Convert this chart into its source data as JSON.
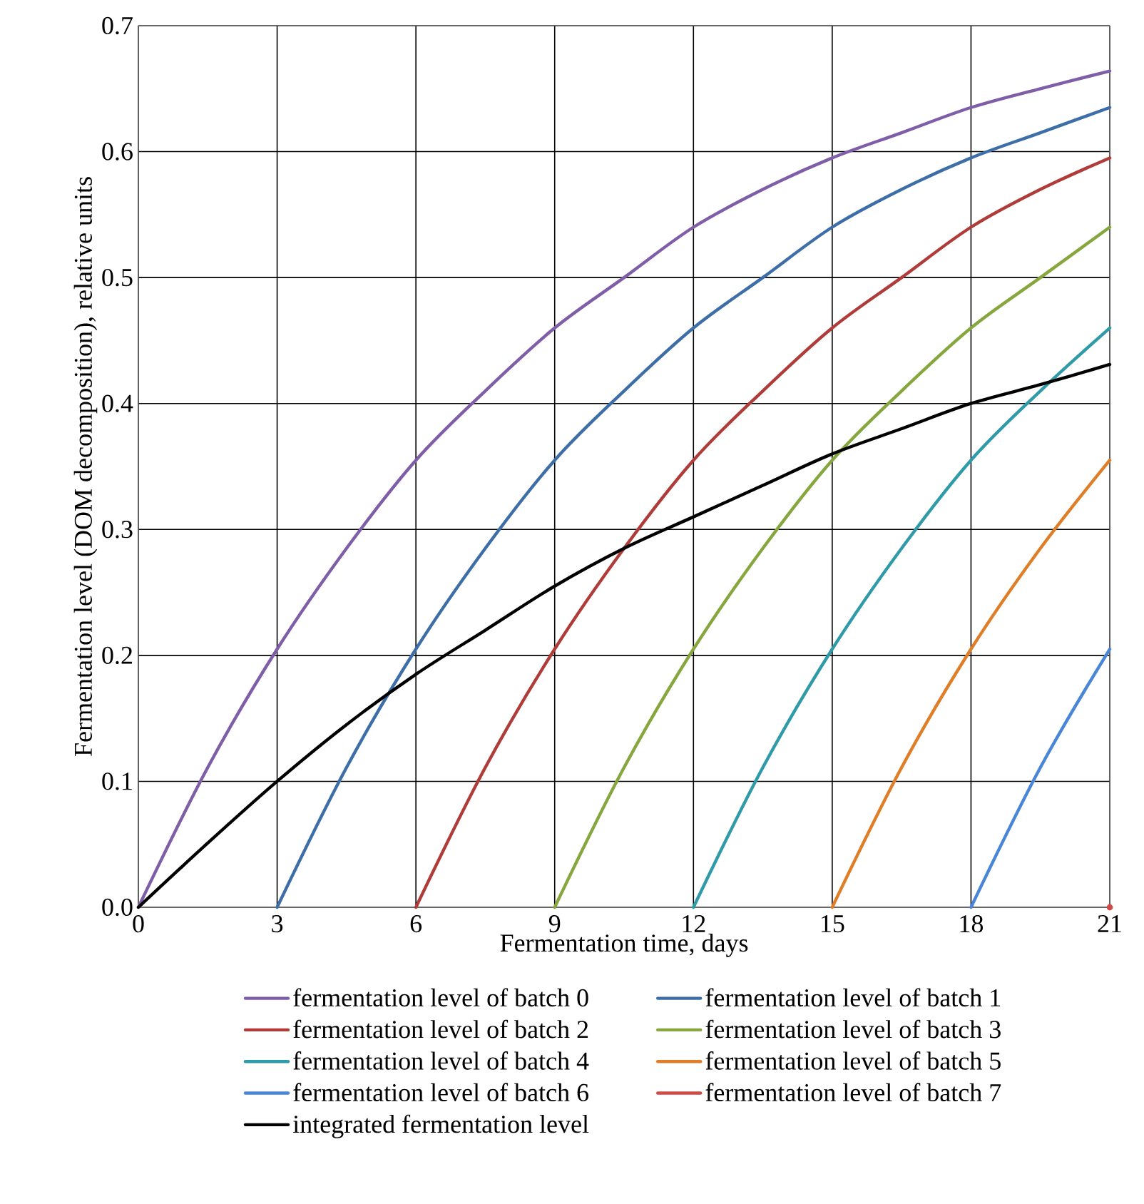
{
  "chart_data": {
    "type": "line",
    "xlabel": "Fermentation time, days",
    "ylabel": "Fermentation level (DOM decomposition), relative units",
    "xlim": [
      0,
      21
    ],
    "ylim": [
      0,
      0.7
    ],
    "xticks": [
      0,
      3,
      6,
      9,
      12,
      15,
      18,
      21
    ],
    "yticks": [
      {
        "value": 0,
        "label": "0.0"
      },
      {
        "value": 0.1,
        "label": "0.1"
      },
      {
        "value": 0.2,
        "label": "0.2"
      },
      {
        "value": 0.3,
        "label": "0.3"
      },
      {
        "value": 0.4,
        "label": "0.4"
      },
      {
        "value": 0.5,
        "label": "0.5"
      },
      {
        "value": 0.6,
        "label": "0.6"
      },
      {
        "value": 0.7,
        "label": "0.7"
      }
    ],
    "grid": true,
    "legend": "bottom",
    "marker": "none",
    "line_style": "solid",
    "series": [
      {
        "name": "fermentation level of batch 0",
        "color": "#7f5ea8",
        "x": [
          0,
          1.5,
          3,
          4.5,
          6,
          7.5,
          9,
          10.5,
          12,
          13.5,
          15,
          16.5,
          18,
          19.5,
          21
        ],
        "values": [
          0,
          0.111,
          0.205,
          0.285,
          0.355,
          0.41,
          0.46,
          0.5,
          0.54,
          0.57,
          0.595,
          0.615,
          0.635,
          0.65,
          0.664
        ]
      },
      {
        "name": "fermentation level of batch 1",
        "color": "#3e6ea8",
        "x": [
          3,
          4.5,
          6,
          7.5,
          9,
          10.5,
          12,
          13.5,
          15,
          16.5,
          18,
          19.5,
          21
        ],
        "values": [
          0,
          0.111,
          0.205,
          0.285,
          0.355,
          0.41,
          0.46,
          0.5,
          0.54,
          0.57,
          0.595,
          0.615,
          0.635
        ]
      },
      {
        "name": "fermentation level of batch 2",
        "color": "#b03c3a",
        "x": [
          6,
          7.5,
          9,
          10.5,
          12,
          13.5,
          15,
          16.5,
          18,
          19.5,
          21
        ],
        "values": [
          0,
          0.111,
          0.205,
          0.285,
          0.355,
          0.41,
          0.46,
          0.5,
          0.54,
          0.57,
          0.595
        ]
      },
      {
        "name": "fermentation level of batch 3",
        "color": "#86a63e",
        "x": [
          9,
          10.5,
          12,
          13.5,
          15,
          16.5,
          18,
          19.5,
          21
        ],
        "values": [
          0,
          0.111,
          0.205,
          0.285,
          0.355,
          0.41,
          0.46,
          0.5,
          0.54
        ]
      },
      {
        "name": "fermentation level of batch 4",
        "color": "#2f9aa8",
        "x": [
          12,
          13.5,
          15,
          16.5,
          18,
          19.5,
          21
        ],
        "values": [
          0,
          0.111,
          0.205,
          0.285,
          0.355,
          0.41,
          0.46
        ]
      },
      {
        "name": "fermentation level of batch 5",
        "color": "#e07e28",
        "x": [
          15,
          16.5,
          18,
          19.5,
          21
        ],
        "values": [
          0,
          0.111,
          0.205,
          0.285,
          0.355
        ]
      },
      {
        "name": "fermentation level of batch 6",
        "color": "#4a86d8",
        "x": [
          18,
          19.5,
          21
        ],
        "values": [
          0,
          0.111,
          0.205
        ]
      },
      {
        "name": "fermentation level of batch 7",
        "color": "#d04a48",
        "x": [
          21
        ],
        "values": [
          0
        ]
      },
      {
        "name": "integrated fermentation level",
        "color": "#000000",
        "x": [
          0,
          1.5,
          3,
          4.5,
          6,
          7.5,
          9,
          10.5,
          12,
          13.5,
          15,
          16.5,
          18,
          19.5,
          21
        ],
        "values": [
          0,
          0.051,
          0.1,
          0.145,
          0.185,
          0.22,
          0.255,
          0.285,
          0.31,
          0.335,
          0.36,
          0.38,
          0.4,
          0.415,
          0.431
        ]
      }
    ]
  }
}
